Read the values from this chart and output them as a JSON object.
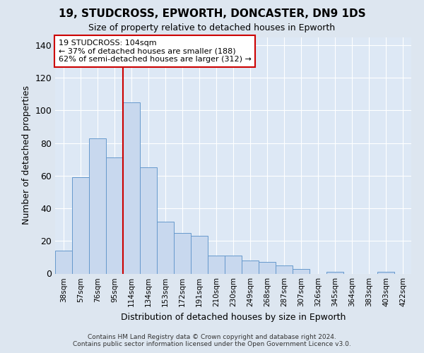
{
  "title1": "19, STUDCROSS, EPWORTH, DONCASTER, DN9 1DS",
  "title2": "Size of property relative to detached houses in Epworth",
  "xlabel": "Distribution of detached houses by size in Epworth",
  "ylabel": "Number of detached properties",
  "bar_labels": [
    "38sqm",
    "57sqm",
    "76sqm",
    "95sqm",
    "114sqm",
    "134sqm",
    "153sqm",
    "172sqm",
    "191sqm",
    "210sqm",
    "230sqm",
    "249sqm",
    "268sqm",
    "287sqm",
    "307sqm",
    "326sqm",
    "345sqm",
    "364sqm",
    "383sqm",
    "403sqm",
    "422sqm"
  ],
  "bar_values": [
    14,
    59,
    83,
    71,
    105,
    65,
    32,
    25,
    23,
    11,
    11,
    8,
    7,
    5,
    3,
    0,
    1,
    0,
    0,
    1,
    0
  ],
  "bar_color": "#c8d8ee",
  "bar_edge_color": "#6699cc",
  "vline_x": 3.5,
  "vline_color": "#cc0000",
  "annotation_title": "19 STUDCROSS: 104sqm",
  "annotation_line1": "← 37% of detached houses are smaller (188)",
  "annotation_line2": "62% of semi-detached houses are larger (312) →",
  "annotation_box_color": "#ffffff",
  "annotation_box_edge": "#cc0000",
  "ylim": [
    0,
    145
  ],
  "yticks": [
    0,
    20,
    40,
    60,
    80,
    100,
    120,
    140
  ],
  "background_color": "#dde6f0",
  "plot_bg_color": "#dde8f5",
  "grid_color": "#ffffff",
  "footer1": "Contains HM Land Registry data © Crown copyright and database right 2024.",
  "footer2": "Contains public sector information licensed under the Open Government Licence v3.0."
}
